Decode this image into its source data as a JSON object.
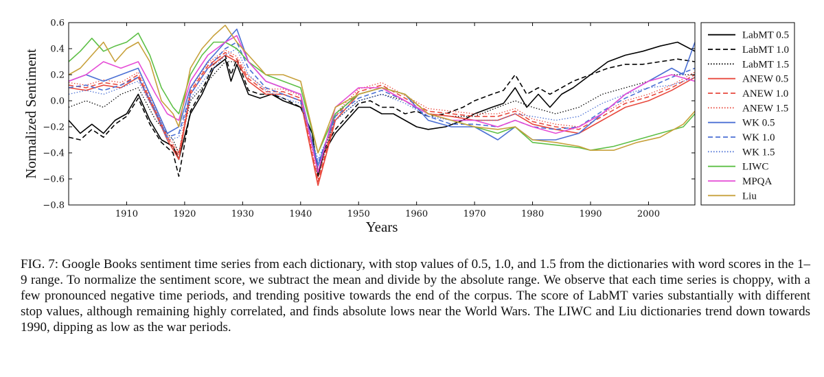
{
  "chart_data": {
    "type": "line",
    "ylabel": "Normalized Sentiment",
    "xlabel": "Years",
    "xlim": [
      1900,
      2008
    ],
    "ylim": [
      -0.8,
      0.6
    ],
    "xticks": [
      1910,
      1920,
      1930,
      1940,
      1950,
      1960,
      1970,
      1980,
      1990,
      2000
    ],
    "yticks": [
      0.6,
      0.4,
      0.2,
      0.0,
      -0.2,
      -0.4,
      -0.6,
      -0.8
    ],
    "ytick_labels": [
      "0.6",
      "0.4",
      "0.2",
      "0.0",
      "−0.2",
      "−0.4",
      "−0.6",
      "−0.8"
    ],
    "grid": false,
    "legend_position": "outside-right",
    "series": [
      {
        "name": "LabMT 0.5",
        "color": "#000000",
        "dash": "solid",
        "x": [
          1900,
          1902,
          1904,
          1906,
          1908,
          1910,
          1912,
          1914,
          1916,
          1918,
          1919,
          1921,
          1923,
          1925,
          1927,
          1928,
          1929,
          1931,
          1933,
          1935,
          1937,
          1940,
          1942,
          1943,
          1944,
          1946,
          1948,
          1950,
          1952,
          1954,
          1956,
          1958,
          1960,
          1962,
          1965,
          1968,
          1970,
          1973,
          1975,
          1977,
          1979,
          1981,
          1983,
          1985,
          1987,
          1990,
          1993,
          1996,
          1999,
          2002,
          2005,
          2008
        ],
        "y": [
          -0.15,
          -0.25,
          -0.18,
          -0.25,
          -0.15,
          -0.1,
          0.05,
          -0.15,
          -0.3,
          -0.35,
          -0.45,
          -0.1,
          0.05,
          0.25,
          0.32,
          0.15,
          0.28,
          0.05,
          0.02,
          0.05,
          0.0,
          -0.05,
          -0.25,
          -0.58,
          -0.4,
          -0.25,
          -0.15,
          -0.05,
          -0.05,
          -0.1,
          -0.1,
          -0.15,
          -0.2,
          -0.22,
          -0.2,
          -0.15,
          -0.1,
          -0.05,
          -0.02,
          0.1,
          -0.05,
          0.05,
          -0.05,
          0.05,
          0.1,
          0.2,
          0.3,
          0.35,
          0.38,
          0.42,
          0.45,
          0.38
        ]
      },
      {
        "name": "LabMT 1.0",
        "color": "#000000",
        "dash": "dashed",
        "x": [
          1900,
          1902,
          1904,
          1906,
          1908,
          1910,
          1912,
          1914,
          1916,
          1918,
          1919,
          1921,
          1923,
          1925,
          1927,
          1928,
          1929,
          1931,
          1933,
          1935,
          1937,
          1940,
          1942,
          1943,
          1944,
          1946,
          1948,
          1950,
          1952,
          1954,
          1956,
          1958,
          1960,
          1962,
          1965,
          1968,
          1970,
          1973,
          1975,
          1977,
          1979,
          1981,
          1983,
          1985,
          1987,
          1990,
          1993,
          1996,
          1999,
          2002,
          2005,
          2008
        ],
        "y": [
          -0.28,
          -0.3,
          -0.22,
          -0.28,
          -0.18,
          -0.12,
          0.02,
          -0.18,
          -0.32,
          -0.4,
          -0.58,
          -0.08,
          0.08,
          0.28,
          0.35,
          0.2,
          0.32,
          0.08,
          0.05,
          0.05,
          0.02,
          -0.05,
          -0.25,
          -0.55,
          -0.38,
          -0.22,
          -0.12,
          -0.02,
          0.0,
          -0.05,
          -0.05,
          -0.1,
          -0.08,
          -0.12,
          -0.1,
          -0.05,
          0.0,
          0.05,
          0.08,
          0.2,
          0.05,
          0.1,
          0.05,
          0.1,
          0.15,
          0.2,
          0.25,
          0.28,
          0.28,
          0.3,
          0.32,
          0.3
        ]
      },
      {
        "name": "LabMT 1.5",
        "color": "#000000",
        "dash": "dotted",
        "x": [
          1900,
          1903,
          1906,
          1909,
          1912,
          1915,
          1918,
          1919,
          1921,
          1924,
          1927,
          1929,
          1931,
          1934,
          1937,
          1940,
          1943,
          1946,
          1950,
          1954,
          1958,
          1962,
          1966,
          1970,
          1974,
          1977,
          1980,
          1984,
          1988,
          1992,
          1996,
          2000,
          2004,
          2008
        ],
        "y": [
          -0.05,
          0.0,
          -0.05,
          0.05,
          0.1,
          -0.15,
          -0.3,
          -0.4,
          0.0,
          0.15,
          0.3,
          0.3,
          0.15,
          0.05,
          0.05,
          0.0,
          -0.5,
          -0.15,
          0.0,
          0.05,
          0.0,
          -0.1,
          -0.12,
          -0.12,
          -0.05,
          0.0,
          -0.05,
          -0.1,
          -0.05,
          0.05,
          0.1,
          0.15,
          0.2,
          0.2
        ]
      },
      {
        "name": "ANEW 0.5",
        "color": "#e8483c",
        "dash": "solid",
        "x": [
          1900,
          1903,
          1906,
          1909,
          1912,
          1915,
          1917,
          1919,
          1921,
          1924,
          1927,
          1929,
          1931,
          1934,
          1937,
          1940,
          1943,
          1946,
          1950,
          1954,
          1958,
          1962,
          1966,
          1970,
          1974,
          1977,
          1980,
          1984,
          1988,
          1992,
          1996,
          2000,
          2004,
          2008
        ],
        "y": [
          0.1,
          0.08,
          0.12,
          0.1,
          0.18,
          -0.1,
          -0.3,
          -0.45,
          0.05,
          0.25,
          0.35,
          0.3,
          0.15,
          0.05,
          0.05,
          0.0,
          -0.65,
          -0.15,
          0.05,
          0.1,
          0.0,
          -0.1,
          -0.12,
          -0.15,
          -0.15,
          -0.1,
          -0.18,
          -0.22,
          -0.25,
          -0.15,
          -0.05,
          0.0,
          0.08,
          0.18
        ]
      },
      {
        "name": "ANEW 1.0",
        "color": "#e8483c",
        "dash": "dashed",
        "x": [
          1900,
          1903,
          1906,
          1909,
          1912,
          1915,
          1917,
          1919,
          1921,
          1924,
          1927,
          1929,
          1931,
          1934,
          1937,
          1940,
          1943,
          1946,
          1950,
          1954,
          1958,
          1962,
          1966,
          1970,
          1974,
          1977,
          1980,
          1984,
          1988,
          1992,
          1996,
          2000,
          2004,
          2008
        ],
        "y": [
          0.12,
          0.1,
          0.14,
          0.12,
          0.2,
          -0.08,
          -0.28,
          -0.42,
          0.07,
          0.27,
          0.37,
          0.32,
          0.17,
          0.07,
          0.07,
          0.02,
          -0.62,
          -0.12,
          0.07,
          0.12,
          0.02,
          -0.08,
          -0.1,
          -0.12,
          -0.12,
          -0.08,
          -0.16,
          -0.2,
          -0.22,
          -0.12,
          -0.02,
          0.03,
          0.1,
          0.2
        ]
      },
      {
        "name": "ANEW 1.5",
        "color": "#e8483c",
        "dash": "dotted",
        "x": [
          1900,
          1903,
          1906,
          1909,
          1912,
          1915,
          1917,
          1919,
          1921,
          1924,
          1927,
          1929,
          1931,
          1934,
          1937,
          1940,
          1943,
          1946,
          1950,
          1954,
          1958,
          1962,
          1966,
          1970,
          1974,
          1977,
          1980,
          1984,
          1988,
          1992,
          1996,
          2000,
          2004,
          2008
        ],
        "y": [
          0.14,
          0.12,
          0.16,
          0.14,
          0.22,
          -0.06,
          -0.26,
          -0.4,
          0.09,
          0.29,
          0.39,
          0.34,
          0.19,
          0.09,
          0.09,
          0.04,
          -0.6,
          -0.1,
          0.09,
          0.14,
          0.04,
          -0.06,
          -0.08,
          -0.1,
          -0.1,
          -0.06,
          -0.14,
          -0.18,
          -0.2,
          -0.1,
          0.0,
          0.05,
          0.12,
          0.22
        ]
      },
      {
        "name": "WK 0.5",
        "color": "#4a6fd4",
        "dash": "solid",
        "x": [
          1900,
          1903,
          1906,
          1909,
          1912,
          1915,
          1917,
          1919,
          1921,
          1924,
          1927,
          1929,
          1931,
          1934,
          1937,
          1940,
          1943,
          1946,
          1950,
          1954,
          1958,
          1962,
          1966,
          1970,
          1974,
          1977,
          1980,
          1984,
          1988,
          1992,
          1996,
          2000,
          2004,
          2006,
          2008
        ],
        "y": [
          0.15,
          0.2,
          0.15,
          0.2,
          0.25,
          -0.05,
          -0.25,
          -0.2,
          0.1,
          0.3,
          0.45,
          0.55,
          0.3,
          0.15,
          0.1,
          0.05,
          -0.5,
          -0.1,
          0.05,
          0.1,
          0.05,
          -0.15,
          -0.2,
          -0.2,
          -0.3,
          -0.2,
          -0.3,
          -0.3,
          -0.25,
          -0.1,
          0.05,
          0.15,
          0.25,
          0.2,
          0.45
        ]
      },
      {
        "name": "WK 1.0",
        "color": "#4a6fd4",
        "dash": "dashed",
        "x": [
          1900,
          1903,
          1906,
          1909,
          1912,
          1915,
          1917,
          1919,
          1921,
          1924,
          1927,
          1929,
          1931,
          1934,
          1937,
          1940,
          1943,
          1946,
          1950,
          1954,
          1958,
          1962,
          1966,
          1970,
          1974,
          1977,
          1980,
          1984,
          1988,
          1992,
          1996,
          2000,
          2004,
          2008
        ],
        "y": [
          0.1,
          0.12,
          0.08,
          0.12,
          0.18,
          -0.08,
          -0.28,
          -0.25,
          0.05,
          0.25,
          0.4,
          0.45,
          0.25,
          0.1,
          0.05,
          0.0,
          -0.48,
          -0.12,
          0.02,
          0.08,
          0.0,
          -0.12,
          -0.18,
          -0.18,
          -0.2,
          -0.15,
          -0.2,
          -0.22,
          -0.2,
          -0.08,
          0.02,
          0.1,
          0.18,
          0.25
        ]
      },
      {
        "name": "WK 1.5",
        "color": "#4a6fd4",
        "dash": "dotted",
        "x": [
          1900,
          1903,
          1906,
          1909,
          1912,
          1915,
          1917,
          1919,
          1921,
          1924,
          1927,
          1929,
          1931,
          1934,
          1937,
          1940,
          1943,
          1946,
          1950,
          1954,
          1958,
          1962,
          1966,
          1970,
          1974,
          1977,
          1980,
          1984,
          1988,
          1992,
          1996,
          2000,
          2004,
          2008
        ],
        "y": [
          0.05,
          0.08,
          0.05,
          0.1,
          0.15,
          -0.1,
          -0.3,
          -0.28,
          0.02,
          0.2,
          0.35,
          0.4,
          0.2,
          0.08,
          0.02,
          -0.02,
          -0.45,
          -0.15,
          0.0,
          0.05,
          -0.02,
          -0.12,
          -0.15,
          -0.15,
          -0.15,
          -0.1,
          -0.12,
          -0.15,
          -0.12,
          -0.02,
          0.05,
          0.1,
          0.12,
          0.18
        ]
      },
      {
        "name": "LIWC",
        "color": "#5cbf45",
        "dash": "solid",
        "x": [
          1900,
          1902,
          1904,
          1906,
          1908,
          1910,
          1912,
          1914,
          1916,
          1918,
          1919,
          1921,
          1923,
          1925,
          1927,
          1929,
          1931,
          1934,
          1937,
          1940,
          1943,
          1946,
          1950,
          1954,
          1958,
          1962,
          1966,
          1970,
          1974,
          1977,
          1980,
          1984,
          1988,
          1990,
          1994,
          1998,
          2002,
          2006,
          2008
        ],
        "y": [
          0.3,
          0.38,
          0.48,
          0.38,
          0.42,
          0.45,
          0.52,
          0.35,
          0.1,
          -0.05,
          -0.1,
          0.2,
          0.35,
          0.45,
          0.45,
          0.4,
          0.3,
          0.2,
          0.15,
          0.1,
          -0.4,
          -0.1,
          0.05,
          0.1,
          0.05,
          -0.1,
          -0.15,
          -0.2,
          -0.25,
          -0.2,
          -0.32,
          -0.34,
          -0.36,
          -0.38,
          -0.35,
          -0.3,
          -0.25,
          -0.2,
          -0.1
        ]
      },
      {
        "name": "MPQA",
        "color": "#e54bd6",
        "dash": "solid",
        "x": [
          1900,
          1903,
          1906,
          1909,
          1912,
          1915,
          1917,
          1919,
          1921,
          1924,
          1927,
          1929,
          1931,
          1934,
          1937,
          1940,
          1943,
          1946,
          1950,
          1954,
          1958,
          1962,
          1966,
          1970,
          1974,
          1977,
          1980,
          1984,
          1988,
          1992,
          1996,
          2000,
          2004,
          2008
        ],
        "y": [
          0.15,
          0.2,
          0.3,
          0.25,
          0.3,
          0.05,
          -0.1,
          -0.15,
          0.15,
          0.35,
          0.45,
          0.5,
          0.3,
          0.15,
          0.1,
          0.05,
          -0.55,
          -0.05,
          0.1,
          0.1,
          0.0,
          -0.1,
          -0.15,
          -0.15,
          -0.2,
          -0.15,
          -0.2,
          -0.25,
          -0.2,
          -0.1,
          0.05,
          0.15,
          0.2,
          0.15
        ]
      },
      {
        "name": "Liu",
        "color": "#c7a03a",
        "dash": "solid",
        "x": [
          1900,
          1902,
          1904,
          1906,
          1908,
          1910,
          1912,
          1914,
          1916,
          1918,
          1919,
          1921,
          1923,
          1925,
          1927,
          1929,
          1931,
          1934,
          1937,
          1940,
          1943,
          1946,
          1950,
          1954,
          1958,
          1962,
          1966,
          1970,
          1974,
          1977,
          1980,
          1984,
          1988,
          1990,
          1994,
          1998,
          2002,
          2006,
          2008
        ],
        "y": [
          0.2,
          0.25,
          0.35,
          0.45,
          0.3,
          0.4,
          0.45,
          0.3,
          0.0,
          -0.1,
          -0.2,
          0.25,
          0.4,
          0.5,
          0.58,
          0.45,
          0.35,
          0.2,
          0.2,
          0.15,
          -0.4,
          -0.05,
          0.05,
          0.1,
          0.05,
          -0.1,
          -0.15,
          -0.2,
          -0.22,
          -0.2,
          -0.3,
          -0.32,
          -0.35,
          -0.38,
          -0.38,
          -0.32,
          -0.28,
          -0.18,
          -0.08
        ]
      }
    ]
  },
  "caption": "FIG. 7: Google Books sentiment time series from each dictionary, with stop values of 0.5, 1.0, and 1.5 from the dictionaries with word scores in the 1–9 range. To normalize the sentiment score, we subtract the mean and divide by the absolute range. We observe that each time series is choppy, with a few pronounced negative time periods, and trending positive towards the end of the corpus. The score of LabMT varies substantially with different stop values, although remaining highly correlated, and finds absolute lows near the World Wars. The LIWC and Liu dictionaries trend down towards 1990, dipping as low as the war periods."
}
